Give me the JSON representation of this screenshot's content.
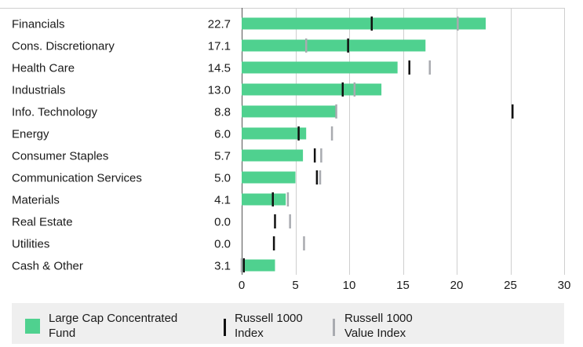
{
  "chart_data": {
    "type": "bar",
    "orientation": "horizontal",
    "categories": [
      "Financials",
      "Cons. Discretionary",
      "Health Care",
      "Industrials",
      "Info. Technology",
      "Energy",
      "Consumer Staples",
      "Communication Services",
      "Materials",
      "Real Estate",
      "Utilities",
      "Cash & Other"
    ],
    "value_labels": [
      "22.7",
      "17.1",
      "14.5",
      "13.0",
      "8.8",
      "6.0",
      "5.7",
      "5.0",
      "4.1",
      "0.0",
      "0.0",
      "3.1"
    ],
    "series": [
      {
        "name": "Large Cap Concentrated Fund",
        "kind": "bar",
        "color": "#4fd18f",
        "values": [
          22.7,
          17.1,
          14.5,
          13.0,
          8.8,
          6.0,
          5.7,
          5.0,
          4.1,
          0.0,
          0.0,
          3.1
        ]
      },
      {
        "name": "Russell 1000 Index",
        "kind": "marker",
        "color": "#111111",
        "values": [
          12.1,
          9.9,
          15.6,
          9.4,
          25.2,
          5.3,
          6.8,
          7.0,
          2.9,
          3.1,
          3.0,
          0.2
        ]
      },
      {
        "name": "Russell 1000 Value Index",
        "kind": "marker",
        "color": "#a9abb0",
        "values": [
          20.1,
          6.0,
          17.5,
          10.5,
          8.8,
          8.4,
          7.4,
          7.3,
          4.3,
          4.5,
          5.8,
          0.0
        ]
      }
    ],
    "xticks": [
      "0",
      "5",
      "10",
      "15",
      "20",
      "25",
      "30"
    ],
    "xlim": [
      0,
      30
    ],
    "grid": "vertical",
    "legend_position": "bottom"
  },
  "legend": {
    "fund": "Large Cap Concentrated\nFund",
    "index": "Russell 1000\nIndex",
    "value_index": "Russell 1000\nValue Index"
  }
}
